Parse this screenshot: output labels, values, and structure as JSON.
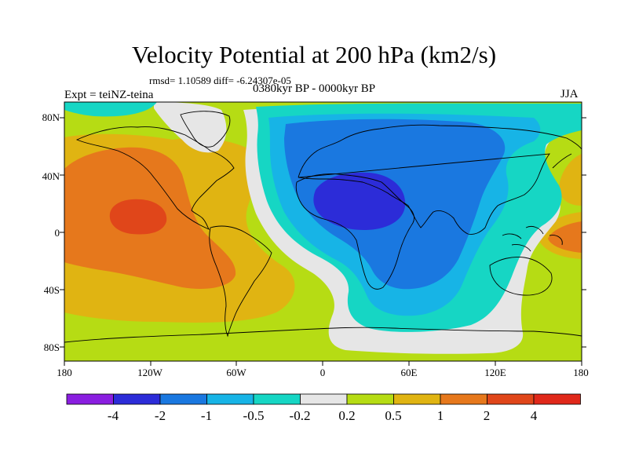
{
  "title": "Velocity Potential at 200 hPa (km2/s)",
  "stats": "rmsd= 1.10589  diff= -6.24307e-05",
  "left_label": "Expt = teiNZ-teina",
  "center_label": "0380kyr BP - 0000kyr BP",
  "right_label": "JJA",
  "y_ticks": [
    "80N",
    "40N",
    "0",
    "40S",
    "80S"
  ],
  "x_ticks": [
    "180",
    "120W",
    "60W",
    "0",
    "60E",
    "120E",
    "180"
  ],
  "colorbar": {
    "labels": [
      "-4",
      "-2",
      "-1",
      "-0.5",
      "-0.2",
      "0.2",
      "0.5",
      "1",
      "2",
      "4"
    ],
    "colors": [
      "#8a1ee0",
      "#2c2cd8",
      "#1a78e0",
      "#17b4e6",
      "#16d6c4",
      "#e6e6e6",
      "#b6dc14",
      "#e0b412",
      "#e6781c",
      "#e0461a",
      "#e0281a"
    ]
  },
  "colors": {
    "lt_m4": "#3a2ed6",
    "m4_m2": "#2c2cd8",
    "m2_m1": "#1a78e0",
    "m1_m05": "#17b4e6",
    "m05_m02": "#16d6c4",
    "m02_02": "#e6e6e6",
    "p02_05": "#b6dc14",
    "p05_1": "#e0b412",
    "p1_2": "#e6781c",
    "p2_4": "#e0461a"
  }
}
